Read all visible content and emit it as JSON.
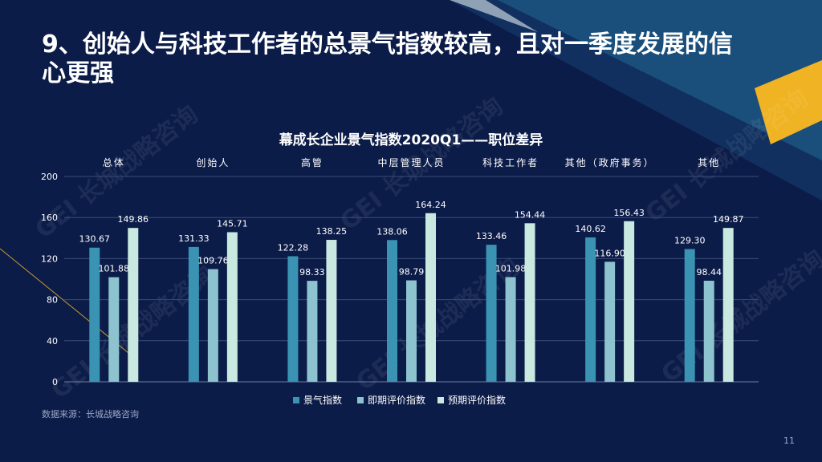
{
  "slide": {
    "title": "9、创始人与科技工作者的总景气指数较高，且对一季度发展的信心更强",
    "source": "数据来源：长城战略咨询",
    "page_number": "11",
    "watermark": "GEI 长城战略咨询"
  },
  "colors": {
    "background": "#0c1c49",
    "series1": "#3a93b3",
    "series2": "#8cc3cf",
    "series3": "#c8e8e0",
    "accent_gold": "#f0b323"
  },
  "chart_data": {
    "type": "bar",
    "title": "幕成长企业景气指数2020Q1——职位差异",
    "categories": [
      "总体",
      "创始人",
      "高管",
      "中层管理人员",
      "科技工作者",
      "其他（政府事务）",
      "其他"
    ],
    "series": [
      {
        "name": "景气指数",
        "values": [
          130.67,
          131.33,
          122.28,
          138.06,
          133.46,
          140.62,
          129.3
        ]
      },
      {
        "name": "即期评价指数",
        "values": [
          101.88,
          109.76,
          98.33,
          98.79,
          101.98,
          116.9,
          98.44
        ]
      },
      {
        "name": "预期评价指数",
        "values": [
          149.86,
          145.71,
          138.25,
          164.24,
          154.44,
          156.43,
          149.87
        ]
      }
    ],
    "ylim": [
      0,
      200
    ],
    "yticks": [
      0,
      40,
      80,
      120,
      160,
      200
    ],
    "grid": true,
    "legend": "bottom"
  }
}
